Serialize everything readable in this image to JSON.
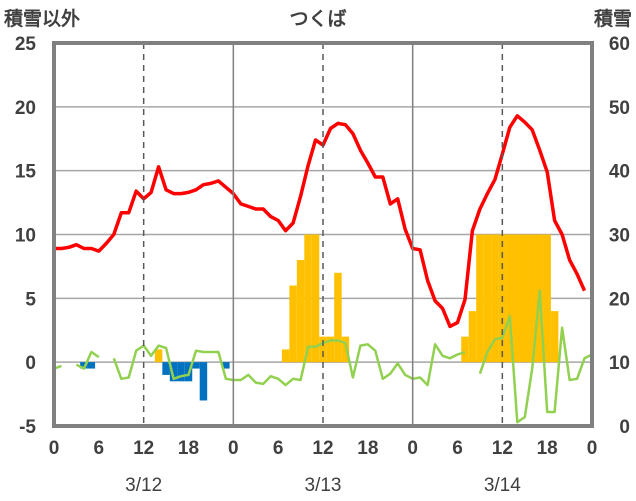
{
  "chart_data": {
    "type": "bar",
    "title": "つくば",
    "left_axis_label": "積雪以外",
    "right_axis_label": "積雪",
    "ylim_left": [
      -5,
      25
    ],
    "yticks_left": [
      "25",
      "20",
      "15",
      "10",
      "5",
      "0",
      "-5"
    ],
    "ylim_right": [
      0,
      60
    ],
    "yticks_right": [
      "60",
      "50",
      "40",
      "30",
      "20",
      "10",
      "0"
    ],
    "x_range_hours": [
      0,
      72
    ],
    "x_tick_labels": [
      "0",
      "6",
      "12",
      "18",
      "0",
      "6",
      "12",
      "18",
      "0",
      "6",
      "12",
      "18",
      "0"
    ],
    "x_ticks_hours": [
      0,
      6,
      12,
      18,
      24,
      30,
      36,
      42,
      48,
      54,
      60,
      66,
      72
    ],
    "date_labels": [
      {
        "label": "3/12",
        "hour": 12
      },
      {
        "label": "3/13",
        "hour": 36
      },
      {
        "label": "3/14",
        "hour": 60
      }
    ],
    "day_separator_hours": [
      24,
      48
    ],
    "noon_marker_hours": [
      12,
      36,
      60
    ],
    "grid": "horizontal",
    "legend": "none",
    "series": [
      {
        "kind": "line",
        "color": "#ff0000",
        "axis": "left",
        "x": [
          0,
          1,
          2,
          3,
          4,
          5,
          6,
          7,
          8,
          9,
          10,
          11,
          12,
          13,
          14,
          15,
          16,
          17,
          18,
          19,
          20,
          21,
          22,
          23,
          24,
          25,
          26,
          27,
          28,
          29,
          30,
          31,
          32,
          33,
          34,
          35,
          36,
          37,
          38,
          39,
          40,
          41,
          42,
          43,
          44,
          45,
          46,
          47,
          48,
          49,
          50,
          51,
          52,
          53,
          54,
          55,
          56,
          57,
          58,
          59,
          60,
          61,
          62,
          63,
          64,
          65,
          66,
          67,
          68,
          69,
          70,
          71,
          72
        ],
        "y": [
          8.9,
          8.9,
          9.0,
          9.2,
          8.9,
          8.9,
          8.7,
          9.3,
          10.0,
          11.7,
          11.7,
          13.4,
          12.8,
          13.3,
          15.3,
          13.5,
          13.2,
          13.2,
          13.3,
          13.5,
          13.9,
          14.0,
          14.2,
          13.7,
          13.2,
          12.4,
          12.2,
          12.0,
          12.0,
          11.4,
          11.1,
          10.3,
          10.9,
          13.0,
          15.4,
          17.4,
          17.0,
          18.3,
          18.7,
          18.6,
          17.9,
          16.6,
          15.6,
          14.5,
          14.5,
          12.4,
          12.8,
          10.4,
          8.9,
          8.8,
          6.4,
          4.8,
          4.2,
          2.8,
          3.1,
          4.9,
          10.3,
          12.0,
          13.2,
          14.3,
          16.3,
          18.4,
          19.3,
          18.8,
          18.2,
          16.6,
          14.9,
          11.1,
          10.0,
          8.0,
          6.9,
          5.6,
          null
        ]
      },
      {
        "kind": "line",
        "color": "#92d050",
        "axis": "left",
        "x": [
          0,
          1,
          2,
          3,
          4,
          5,
          6,
          7,
          8,
          9,
          10,
          11,
          12,
          13,
          14,
          15,
          16,
          17,
          18,
          19,
          20,
          21,
          22,
          23,
          24,
          25,
          26,
          27,
          28,
          29,
          30,
          31,
          32,
          33,
          34,
          35,
          36,
          37,
          38,
          39,
          40,
          41,
          42,
          43,
          44,
          45,
          46,
          47,
          48,
          49,
          50,
          51,
          52,
          53,
          54,
          55,
          56,
          57,
          58,
          59,
          60,
          61,
          62,
          63,
          64,
          65,
          66,
          67,
          68,
          69,
          70,
          71,
          72
        ],
        "y": [
          -0.5,
          -0.3,
          null,
          -0.2,
          -0.5,
          0.8,
          0.4,
          null,
          0.3,
          -1.3,
          -1.2,
          0.9,
          1.3,
          0.5,
          1.3,
          1.1,
          -1.3,
          -1.1,
          -1.0,
          0.9,
          0.8,
          0.8,
          0.8,
          -1.3,
          -1.4,
          -1.4,
          -1.0,
          -1.6,
          -1.7,
          -1.1,
          -1.3,
          -1.8,
          -1.3,
          -1.4,
          1.2,
          1.2,
          1.5,
          1.7,
          1.7,
          1.5,
          -1.2,
          1.3,
          1.4,
          0.9,
          -1.3,
          -0.9,
          -0.1,
          -1.0,
          -1.3,
          -1.2,
          -1.8,
          1.4,
          0.5,
          0.3,
          0.6,
          0.8,
          null,
          -0.9,
          0.8,
          1.8,
          1.9,
          3.6,
          -4.7,
          -4.3,
          -0.5,
          5.6,
          -3.9,
          -3.9,
          2.7,
          -1.4,
          -1.3,
          0.3,
          0.6
        ]
      },
      {
        "kind": "bar",
        "color": "#0070c0",
        "axis": "left",
        "x": [
          4,
          5,
          15,
          16,
          17,
          18,
          19,
          20,
          23
        ],
        "y": [
          -0.5,
          -0.5,
          -1.0,
          -1.5,
          -1.5,
          -1.5,
          -0.5,
          -3.0,
          -0.5
        ]
      },
      {
        "kind": "bar",
        "color": "#ffc000",
        "axis": "left",
        "x": [
          14,
          31,
          32,
          33,
          34,
          35,
          36,
          37,
          38,
          39,
          55,
          56,
          57,
          58,
          59,
          60,
          61,
          62,
          63,
          64,
          65,
          66,
          67
        ],
        "y": [
          1.0,
          1.0,
          6.0,
          8.0,
          10.0,
          10.0,
          2.0,
          2.0,
          7.0,
          2.0,
          2.0,
          4.0,
          10.0,
          10.0,
          10.0,
          10.0,
          10.0,
          10.0,
          10.0,
          10.0,
          10.0,
          10.0,
          4.0
        ]
      },
      {
        "kind": "line",
        "color": "#7030a0",
        "axis": "right",
        "x": [
          0,
          72
        ],
        "y": [
          0,
          0
        ]
      }
    ]
  }
}
